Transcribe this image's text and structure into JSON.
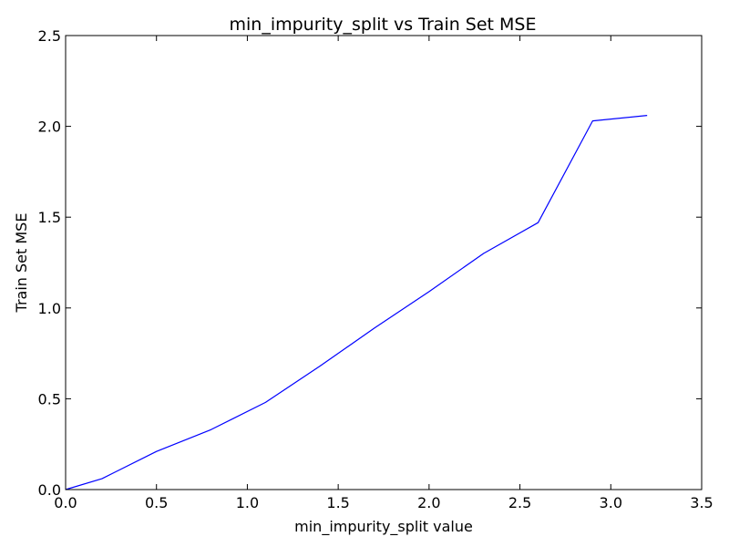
{
  "chart_data": {
    "type": "line",
    "title": "min_impurity_split vs Train Set MSE",
    "xlabel": "min_impurity_split value",
    "ylabel": "Train Set MSE",
    "xlim": [
      0.0,
      3.5
    ],
    "ylim": [
      0.0,
      2.5
    ],
    "xticks": [
      "0.0",
      "0.5",
      "1.0",
      "1.5",
      "2.0",
      "2.5",
      "3.0",
      "3.5"
    ],
    "yticks": [
      "0.0",
      "0.5",
      "1.0",
      "1.5",
      "2.0",
      "2.5"
    ],
    "grid": false,
    "series": [
      {
        "color": "#0000ff",
        "x": [
          0.0,
          0.2,
          0.5,
          0.8,
          1.1,
          1.4,
          1.7,
          2.0,
          2.3,
          2.6,
          2.9,
          3.2
        ],
        "y": [
          0.0,
          0.06,
          0.21,
          0.33,
          0.48,
          0.68,
          0.89,
          1.09,
          1.3,
          1.47,
          2.03,
          2.06
        ]
      }
    ]
  }
}
